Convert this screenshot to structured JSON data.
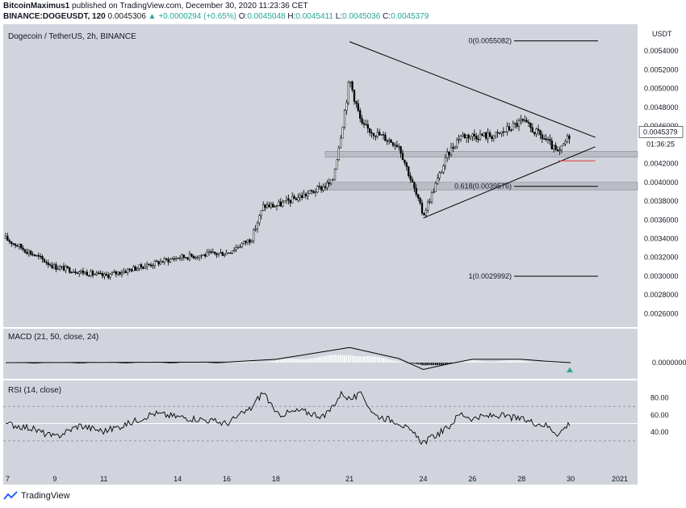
{
  "header": {
    "author": "BitcoinMaximus1",
    "published": "published on TradingView.com, December 30, 2020 11:23:36 CET",
    "symbol": "BINANCE:DOGEUSDT, 120",
    "last": "0.0045306",
    "change": "▲ +0.0000294 (+0.65%)",
    "o_label": "O:",
    "o": "0.0045048",
    "h_label": "H:",
    "h": "0.0045411",
    "l_label": "L:",
    "l": "0.0045036",
    "c_label": "C:",
    "c": "0.0045379"
  },
  "footer": {
    "brand": "TradingView",
    "logo_icon": "tradingview-logo-icon"
  },
  "colors": {
    "pane_bg": "#d1d4dc",
    "candle": "#000000",
    "accent_red": "#e53935",
    "accent_green": "#26a69a"
  },
  "chart_data": {
    "type": "candlestick",
    "title": "Dogecoin / TetherUS, 2h, BINANCE",
    "currency": "USDT",
    "y_ticks": [
      "0.0054000",
      "0.0052000",
      "0.0050000",
      "0.0048000",
      "0.0046000",
      "0.0044000",
      "0.0042000",
      "0.0040000",
      "0.0038000",
      "0.0036000",
      "0.0034000",
      "0.0032000",
      "0.0030000",
      "0.0028000",
      "0.0026000"
    ],
    "ylim": [
      0.0025,
      0.0056
    ],
    "x_ticks": [
      "7",
      "9",
      "11",
      "14",
      "16",
      "18",
      "21",
      "24",
      "26",
      "28",
      "30",
      "2021"
    ],
    "last_price": "0.0045379",
    "countdown": "01:36:25",
    "price_path": [
      {
        "x": "7",
        "y": 0.0034
      },
      {
        "x": "9",
        "y": 0.0031
      },
      {
        "x": "11",
        "y": 0.003
      },
      {
        "x": "14",
        "y": 0.0032
      },
      {
        "x": "16",
        "y": 0.00325
      },
      {
        "x": "17",
        "y": 0.0034
      },
      {
        "x": "17.5",
        "y": 0.00375
      },
      {
        "x": "18",
        "y": 0.00375
      },
      {
        "x": "19.5",
        "y": 0.0039
      },
      {
        "x": "20.3",
        "y": 0.004
      },
      {
        "x": "20.7",
        "y": 0.0046
      },
      {
        "x": "21",
        "y": 0.0051
      },
      {
        "x": "21.5",
        "y": 0.0046
      },
      {
        "x": "23",
        "y": 0.0044
      },
      {
        "x": "24",
        "y": 0.00365
      },
      {
        "x": "25",
        "y": 0.0043
      },
      {
        "x": "25.5",
        "y": 0.0045
      },
      {
        "x": "27",
        "y": 0.0045
      },
      {
        "x": "28",
        "y": 0.00465
      },
      {
        "x": "29",
        "y": 0.00445
      },
      {
        "x": "29.5",
        "y": 0.0043
      },
      {
        "x": "30",
        "y": 0.00453
      }
    ],
    "fib_levels": [
      {
        "label": "0(0.0055082)",
        "value": 0.0055082
      },
      {
        "label": "0.618(0.0039576)",
        "value": 0.0039576
      },
      {
        "label": "1(0.0029992)",
        "value": 0.0029992
      }
    ],
    "support_zones": [
      {
        "low": 0.00427,
        "high": 0.00433
      },
      {
        "low": 0.00392,
        "high": 0.004
      }
    ],
    "triangle": {
      "upper": [
        {
          "x": "21",
          "y": 0.0055
        },
        {
          "x": "31",
          "y": 0.00448
        }
      ],
      "lower": [
        {
          "x": "24",
          "y": 0.00362
        },
        {
          "x": "31",
          "y": 0.00438
        }
      ]
    },
    "red_line": {
      "from": "29.5",
      "to": "31",
      "y": 0.00423
    },
    "macd": {
      "label": "MACD (21, 50, close, 24)",
      "y_tick": "0.0000000",
      "line_path": [
        {
          "x": "7",
          "y": 0
        },
        {
          "x": "16",
          "y": 0.02
        },
        {
          "x": "18",
          "y": 0.12
        },
        {
          "x": "21",
          "y": 0.55
        },
        {
          "x": "23",
          "y": 0.15
        },
        {
          "x": "24",
          "y": -0.25
        },
        {
          "x": "25",
          "y": -0.05
        },
        {
          "x": "26",
          "y": 0.12
        },
        {
          "x": "28",
          "y": 0.12
        },
        {
          "x": "29",
          "y": 0.05
        },
        {
          "x": "30",
          "y": 0
        }
      ],
      "signal_marker": "up-triangle-icon"
    },
    "rsi": {
      "label": "RSI (14, close)",
      "y_ticks": [
        "80.00",
        "60.00",
        "40.00"
      ],
      "bands": [
        70,
        50,
        30
      ],
      "values": [
        {
          "x": "7",
          "y": 50
        },
        {
          "x": "8",
          "y": 45
        },
        {
          "x": "9",
          "y": 34
        },
        {
          "x": "10",
          "y": 48
        },
        {
          "x": "11",
          "y": 41
        },
        {
          "x": "12",
          "y": 50
        },
        {
          "x": "13",
          "y": 62
        },
        {
          "x": "14",
          "y": 58
        },
        {
          "x": "15",
          "y": 55
        },
        {
          "x": "16",
          "y": 50
        },
        {
          "x": "17",
          "y": 68
        },
        {
          "x": "17.5",
          "y": 88
        },
        {
          "x": "18",
          "y": 60
        },
        {
          "x": "19",
          "y": 65
        },
        {
          "x": "20",
          "y": 58
        },
        {
          "x": "20.7",
          "y": 86
        },
        {
          "x": "21",
          "y": 78
        },
        {
          "x": "21.5",
          "y": 84
        },
        {
          "x": "22",
          "y": 60
        },
        {
          "x": "23",
          "y": 52
        },
        {
          "x": "24",
          "y": 28
        },
        {
          "x": "25",
          "y": 45
        },
        {
          "x": "25.5",
          "y": 62
        },
        {
          "x": "26",
          "y": 56
        },
        {
          "x": "27",
          "y": 60
        },
        {
          "x": "28",
          "y": 55
        },
        {
          "x": "29",
          "y": 48
        },
        {
          "x": "29.5",
          "y": 38
        },
        {
          "x": "30",
          "y": 52
        }
      ]
    }
  }
}
